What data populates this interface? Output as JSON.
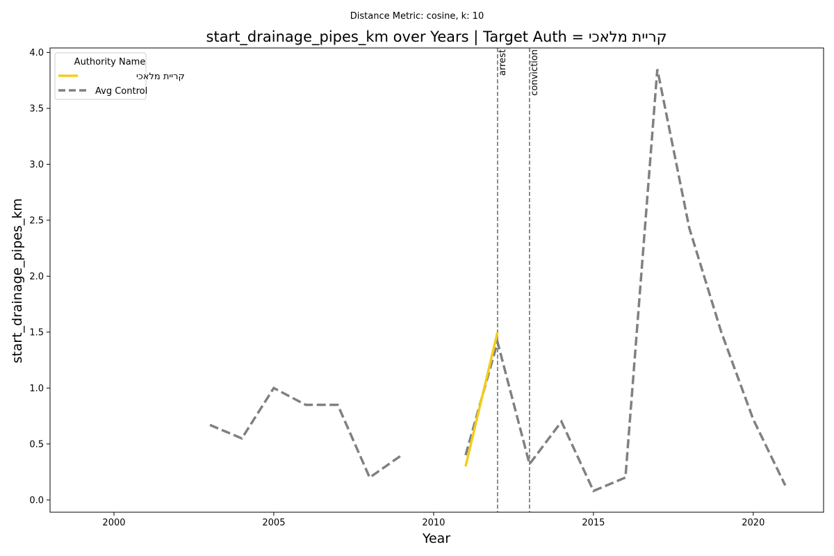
{
  "chart_data": {
    "type": "line",
    "suptitle": "Distance Metric: cosine, k: 10",
    "title": "start_drainage_pipes_km over Years | Target Auth = קריית מלאכי",
    "xlabel": "Year",
    "ylabel": "start_drainage_pipes_km",
    "xlim": [
      1998,
      2022.2
    ],
    "ylim": [
      -0.11,
      4.04
    ],
    "xticks": [
      2000,
      2005,
      2010,
      2015,
      2020
    ],
    "yticks": [
      0.0,
      0.5,
      1.0,
      1.5,
      2.0,
      2.5,
      3.0,
      3.5,
      4.0
    ],
    "xtick_labels": [
      "2000",
      "2005",
      "2010",
      "2015",
      "2020"
    ],
    "ytick_labels": [
      "0.0",
      "0.5",
      "1.0",
      "1.5",
      "2.0",
      "2.5",
      "3.0",
      "3.5",
      "4.0"
    ],
    "grid": false,
    "legend": {
      "title": "Authority Name",
      "placement": "top-left"
    },
    "series": [
      {
        "name": "קריית מלאכי",
        "color": "#f2cd1b",
        "style": "solid",
        "segments": [
          [
            [
              2011,
              0.3
            ],
            [
              2012,
              1.5
            ]
          ]
        ]
      },
      {
        "name": "Avg Control",
        "color": "#808080",
        "style": "dashed",
        "segments": [
          [
            [
              2003,
              0.67
            ],
            [
              2004,
              0.55
            ],
            [
              2005,
              1.0
            ],
            [
              2006,
              0.85
            ],
            [
              2007,
              0.85
            ],
            [
              2008,
              0.2
            ],
            [
              2009,
              0.4
            ]
          ],
          [
            [
              2011,
              0.4
            ],
            [
              2012,
              1.41
            ],
            [
              2013,
              0.32
            ],
            [
              2014,
              0.7
            ],
            [
              2015,
              0.08
            ],
            [
              2016,
              0.2
            ],
            [
              2017,
              3.85
            ],
            [
              2018,
              2.43
            ],
            [
              2019,
              1.5
            ],
            [
              2020,
              0.72
            ],
            [
              2021,
              0.13
            ]
          ]
        ]
      }
    ],
    "vlines": [
      {
        "x": 2012,
        "label": "arrest",
        "color": "#808080"
      },
      {
        "x": 2013,
        "label": "conviction",
        "color": "#808080"
      }
    ]
  }
}
